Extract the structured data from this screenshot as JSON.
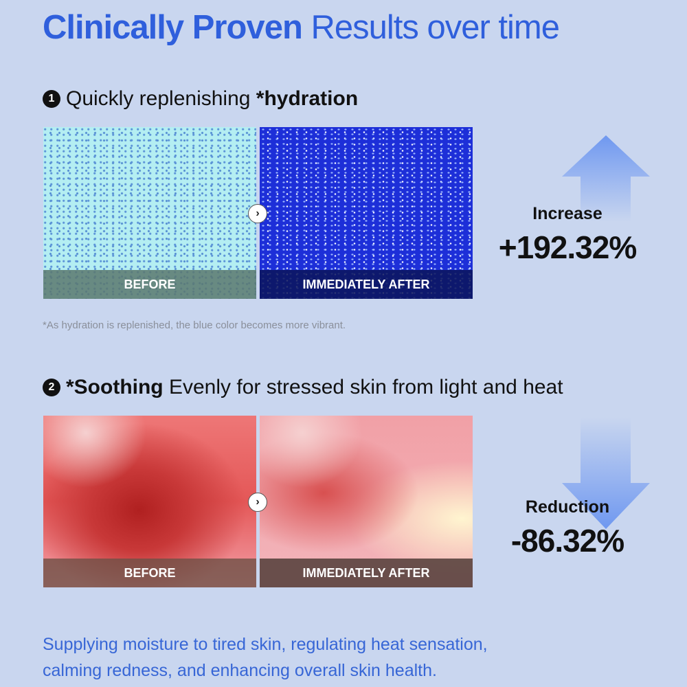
{
  "title": {
    "bold": "Clinically Proven",
    "rest": "Results over time"
  },
  "section1": {
    "number": "1",
    "text": "Quickly replenishing ",
    "bold": "*hydration",
    "before_label": "BEFORE",
    "after_label": "IMMEDIATELY AFTER",
    "stat_label": "Increase",
    "stat_value": "+192.32%",
    "arrow": "arrow-up-icon",
    "footnote": "*As hydration is replenished, the blue color becomes more vibrant."
  },
  "section2": {
    "number": "2",
    "bold": "*Soothing",
    "text": " Evenly for stressed skin from light and heat",
    "before_label": "BEFORE",
    "after_label": "IMMEDIATELY AFTER",
    "stat_label": "Reduction",
    "stat_value": "-86.32%",
    "arrow": "arrow-down-icon"
  },
  "bottom": {
    "line1": "Supplying moisture to tired skin, regulating heat sensation,",
    "line2": "calming redness, and enhancing overall skin health."
  },
  "colors": {
    "background": "#c9d6ef",
    "title_blue": "#2f5fdc",
    "arrow_blue": "#6f98f0"
  }
}
